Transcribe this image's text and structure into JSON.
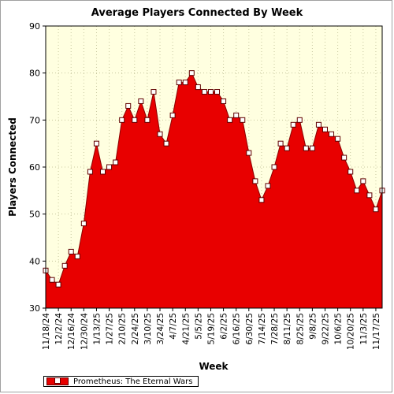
{
  "chart_data": {
    "type": "area",
    "title": "Average Players Connected By Week",
    "xlabel": "Week",
    "ylabel": "Players Connected",
    "ylim": [
      30,
      90
    ],
    "yticks": [
      30,
      40,
      50,
      60,
      70,
      80,
      90
    ],
    "grid": true,
    "legend_position": "bottom-left",
    "colors": {
      "fill": "#e80000",
      "plot_background": "#ffffe0",
      "grid": "#c8c8a0"
    },
    "x": [
      "11/18/24",
      "11/25/24",
      "12/2/24",
      "12/9/24",
      "12/16/24",
      "12/23/24",
      "12/30/24",
      "1/6/25",
      "1/13/25",
      "1/20/25",
      "1/27/25",
      "2/3/25",
      "2/10/25",
      "2/17/25",
      "2/24/25",
      "3/3/25",
      "3/10/25",
      "3/17/25",
      "3/24/25",
      "3/31/25",
      "4/7/25",
      "4/14/25",
      "4/21/25",
      "4/28/25",
      "5/5/25",
      "5/12/25",
      "5/19/25",
      "5/26/25",
      "6/2/25",
      "6/9/25",
      "6/16/25",
      "6/23/25",
      "6/30/25",
      "7/7/25",
      "7/14/25",
      "7/21/25",
      "7/28/25",
      "8/4/25",
      "8/11/25",
      "8/18/25",
      "8/25/25",
      "9/1/25",
      "9/8/25",
      "9/15/25",
      "9/22/25",
      "9/29/25",
      "10/6/25",
      "10/13/25",
      "10/20/25",
      "10/27/25",
      "11/3/25",
      "11/10/25",
      "11/17/25",
      "11/24/25"
    ],
    "x_tick_labels": [
      "11/18/24",
      "12/2/24",
      "12/16/24",
      "12/30/24",
      "1/13/25",
      "1/27/25",
      "2/10/25",
      "2/24/25",
      "3/10/25",
      "3/24/25",
      "4/7/25",
      "4/21/25",
      "5/5/25",
      "5/19/25",
      "6/2/25",
      "6/16/25",
      "6/30/25",
      "7/14/25",
      "7/28/25",
      "8/11/25",
      "8/25/25",
      "9/8/25",
      "9/22/25",
      "10/6/25",
      "10/20/25",
      "11/3/25",
      "11/17/25"
    ],
    "series": [
      {
        "name": "Prometheus: The Eternal Wars",
        "values": [
          38,
          36,
          35,
          39,
          42,
          41,
          48,
          59,
          65,
          59,
          60,
          61,
          70,
          73,
          70,
          74,
          70,
          76,
          67,
          65,
          71,
          78,
          78,
          80,
          77,
          76,
          76,
          76,
          74,
          70,
          71,
          70,
          63,
          57,
          53,
          56,
          60,
          65,
          64,
          69,
          70,
          64,
          64,
          69,
          68,
          67,
          66,
          62,
          59,
          55,
          57,
          54,
          51,
          55
        ]
      }
    ]
  }
}
